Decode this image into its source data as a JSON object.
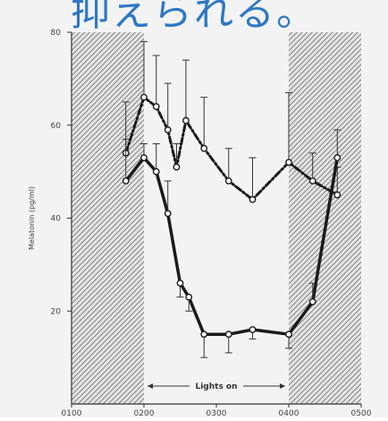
{
  "headline": "抑えられる。",
  "chart_data": {
    "type": "line",
    "ylabel": "Melatonin (pg/ml)",
    "xlabel": "",
    "x_tick_labels": [
      "0100",
      "0200",
      "0300",
      "0400",
      "0500"
    ],
    "x_tick_values": [
      1,
      2,
      3,
      4,
      5
    ],
    "xlim": [
      1,
      5
    ],
    "y_ticks": [
      20,
      40,
      60,
      80
    ],
    "ylim": [
      0,
      80
    ],
    "dark_periods": [
      [
        1,
        2
      ],
      [
        4,
        5
      ]
    ],
    "annotation": "Lights on",
    "annotation_span": [
      2,
      4
    ],
    "series": [
      {
        "style": "dashed",
        "x": [
          1.75,
          2.0,
          2.17,
          2.33,
          2.45,
          2.58,
          2.83,
          3.17,
          3.5,
          4.0,
          4.33,
          4.67
        ],
        "y": [
          54,
          66,
          64,
          59,
          51,
          61,
          55,
          48,
          44,
          52,
          48,
          45
        ],
        "err": [
          11,
          12,
          11,
          10,
          5,
          13,
          11,
          7,
          9,
          15,
          6,
          6
        ]
      },
      {
        "style": "solid",
        "x": [
          1.75,
          2.0,
          2.17,
          2.33,
          2.5,
          2.62,
          2.83,
          3.17,
          3.5,
          4.0,
          4.33,
          4.67
        ],
        "y": [
          48,
          53,
          50,
          41,
          26,
          23,
          15,
          15,
          16,
          15,
          22,
          53
        ],
        "err": [
          9,
          3,
          6,
          7,
          3,
          3,
          5,
          4,
          2,
          3,
          4,
          6
        ]
      }
    ]
  }
}
